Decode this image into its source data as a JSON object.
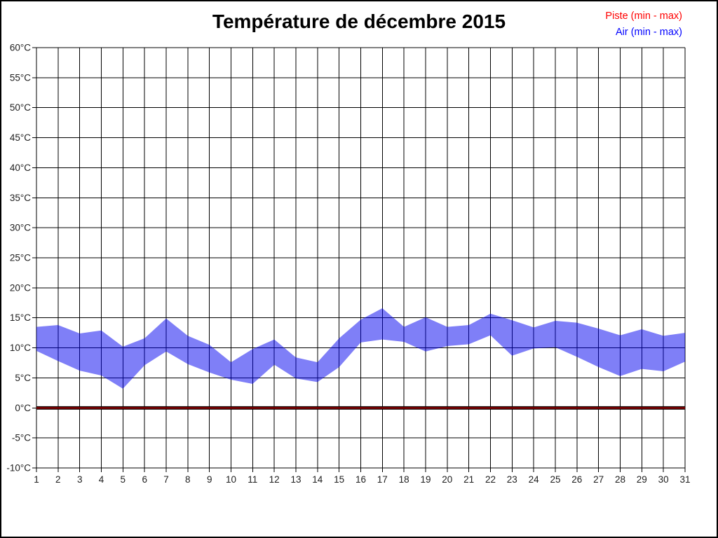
{
  "title": "Température de décembre 2015",
  "legend": {
    "position": "top-right",
    "items": [
      {
        "label": "Piste (min - max)",
        "color": "#ff0000"
      },
      {
        "label": "Air (min - max)",
        "color": "#0000ff"
      }
    ]
  },
  "chart_data": {
    "type": "area",
    "title": "Température de décembre 2015",
    "xlabel": "",
    "ylabel": "",
    "grid": true,
    "legend_position": "top-right",
    "x": [
      1,
      2,
      3,
      4,
      5,
      6,
      7,
      8,
      9,
      10,
      11,
      12,
      13,
      14,
      15,
      16,
      17,
      18,
      19,
      20,
      21,
      22,
      23,
      24,
      25,
      26,
      27,
      28,
      29,
      30,
      31
    ],
    "ylim": [
      -10,
      60
    ],
    "y_tick_step": 5,
    "y_ticks": [
      60,
      55,
      50,
      45,
      40,
      35,
      30,
      25,
      20,
      15,
      10,
      5,
      0,
      -5,
      -10
    ],
    "y_tick_labels": [
      "60°C",
      "55°C",
      "50°C",
      "45°C",
      "40°C",
      "35°C",
      "30°C",
      "25°C",
      "20°C",
      "15°C",
      "10°C",
      "5°C",
      "0°C",
      "-5°C",
      "-10°C"
    ],
    "series": [
      {
        "name": "Piste (min - max)",
        "style": "flat-line",
        "legend_color": "#ff0000",
        "line_color": "#7a0000",
        "edge_color": "#000000",
        "min": [
          0,
          0,
          0,
          0,
          0,
          0,
          0,
          0,
          0,
          0,
          0,
          0,
          0,
          0,
          0,
          0,
          0,
          0,
          0,
          0,
          0,
          0,
          0,
          0,
          0,
          0,
          0,
          0,
          0,
          0,
          0
        ],
        "max": [
          0,
          0,
          0,
          0,
          0,
          0,
          0,
          0,
          0,
          0,
          0,
          0,
          0,
          0,
          0,
          0,
          0,
          0,
          0,
          0,
          0,
          0,
          0,
          0,
          0,
          0,
          0,
          0,
          0,
          0,
          0
        ]
      },
      {
        "name": "Air (min - max)",
        "style": "band",
        "legend_color": "#0000ff",
        "fill": "rgba(0,0,240,0.5)",
        "min": [
          9.5,
          7.8,
          6.2,
          5.4,
          3.2,
          7.1,
          9.4,
          7.3,
          5.9,
          4.7,
          4.0,
          7.2,
          4.9,
          4.3,
          6.8,
          10.9,
          11.4,
          11.0,
          9.4,
          10.3,
          10.6,
          12.1,
          8.7,
          9.9,
          10.1,
          8.5,
          6.8,
          5.3,
          6.5,
          6.1,
          7.7
        ],
        "max": [
          13.5,
          13.8,
          12.4,
          12.9,
          10.2,
          11.6,
          14.9,
          12.0,
          10.5,
          7.6,
          9.8,
          11.4,
          8.4,
          7.6,
          11.6,
          14.7,
          16.6,
          13.5,
          15.1,
          13.5,
          13.8,
          15.7,
          14.6,
          13.4,
          14.5,
          14.2,
          13.2,
          12.1,
          13.1,
          12.0,
          12.5
        ]
      }
    ]
  }
}
